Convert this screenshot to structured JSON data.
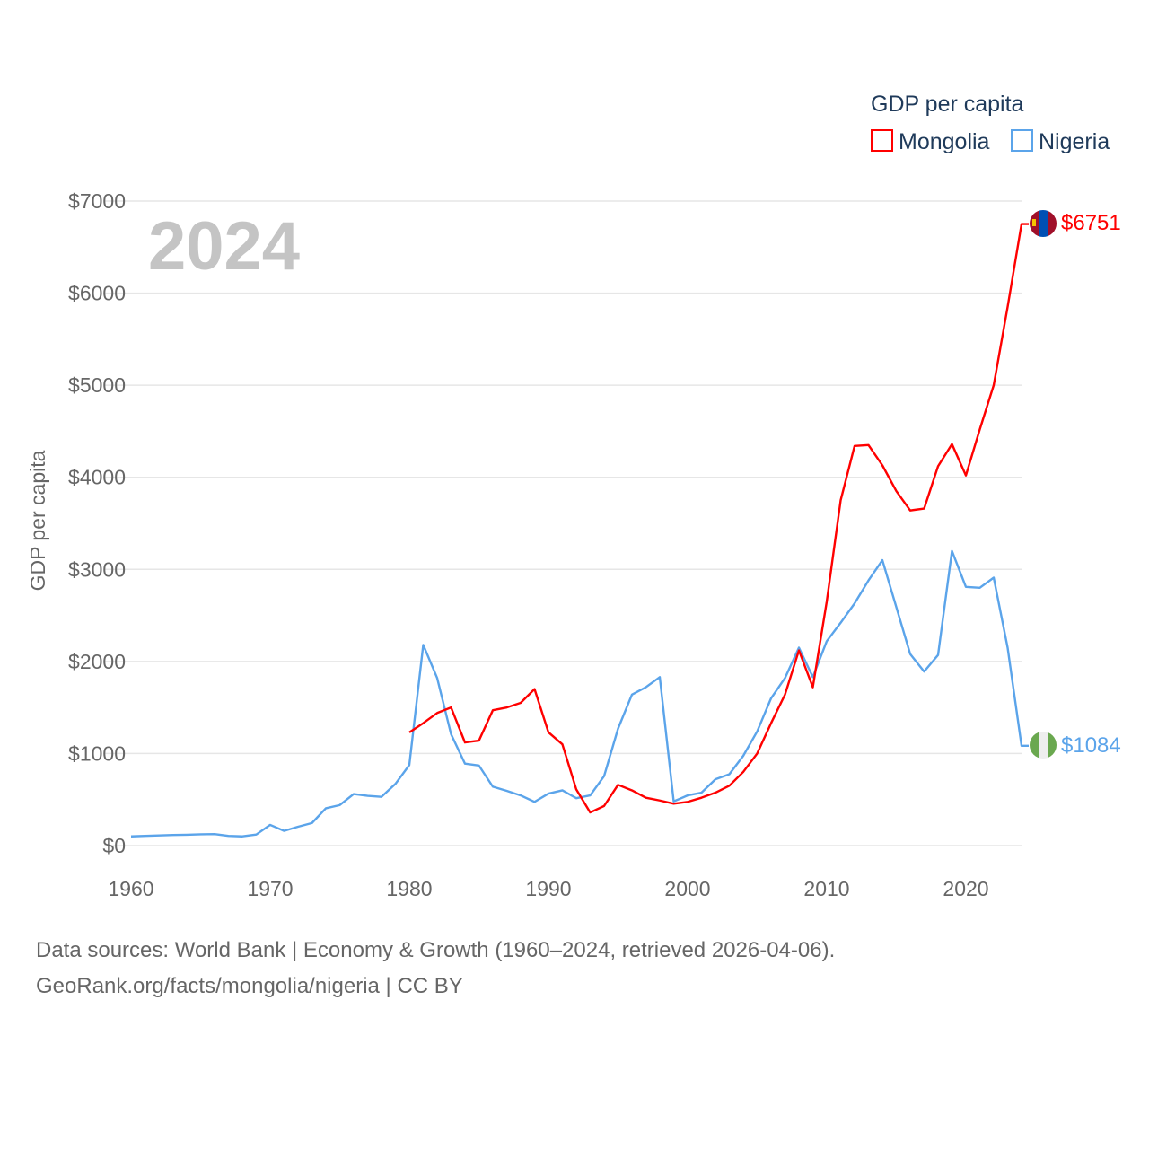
{
  "chart_data": {
    "type": "line",
    "title": "GDP per capita",
    "ylabel": "GDP per capita",
    "xlabel": "",
    "year_label": "2024",
    "xlim": [
      1960,
      2024
    ],
    "ylim": [
      0,
      7000
    ],
    "x_ticks": [
      1960,
      1970,
      1980,
      1990,
      2000,
      2010,
      2020
    ],
    "y_ticks": [
      0,
      1000,
      2000,
      3000,
      4000,
      5000,
      6000,
      7000
    ],
    "y_tick_labels": [
      "$0",
      "$1000",
      "$2000",
      "$3000",
      "$4000",
      "$5000",
      "$6000",
      "$7000"
    ],
    "grid": true,
    "legend_placement": "top-right",
    "series": [
      {
        "name": "Mongolia",
        "color": "#ff0000",
        "start_year": 1980,
        "end_label": "$6751",
        "values": [
          1230,
          1330,
          1440,
          1500,
          1120,
          1140,
          1470,
          1500,
          1550,
          1700,
          1230,
          1100,
          610,
          360,
          430,
          660,
          600,
          520,
          490,
          455,
          475,
          520,
          575,
          650,
          800,
          1000,
          1330,
          1640,
          2120,
          1720,
          2650,
          3750,
          4340,
          4350,
          4130,
          3850,
          3640,
          3660,
          4120,
          4360,
          4020,
          4520,
          5000,
          5850,
          6751
        ]
      },
      {
        "name": "Nigeria",
        "color": "#5ba4ea",
        "start_year": 1960,
        "end_label": "$1084",
        "values": [
          100,
          105,
          110,
          115,
          118,
          122,
          125,
          105,
          100,
          120,
          225,
          160,
          205,
          245,
          405,
          440,
          560,
          540,
          530,
          670,
          875,
          2180,
          1820,
          1210,
          890,
          870,
          640,
          595,
          545,
          475,
          565,
          600,
          515,
          545,
          755,
          1270,
          1640,
          1720,
          1830,
          480,
          545,
          575,
          720,
          775,
          975,
          1240,
          1600,
          1820,
          2150,
          1830,
          2220,
          2420,
          2630,
          2880,
          3100,
          2590,
          2080,
          1890,
          2070,
          3200,
          2810,
          2800,
          2910,
          2150,
          1084
        ]
      }
    ]
  },
  "footer": {
    "line1": "Data sources: World Bank | Economy & Growth (1960–2024, retrieved 2026-04-06).",
    "line2": "GeoRank.org/facts/mongolia/nigeria | CC BY"
  }
}
